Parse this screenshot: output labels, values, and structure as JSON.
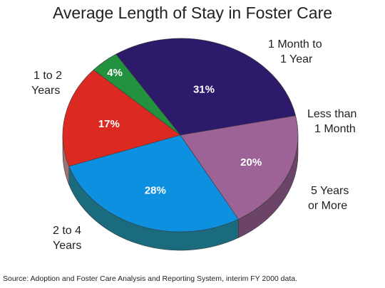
{
  "chart_data": {
    "type": "pie",
    "title": "Average Length of Stay in Foster Care",
    "source": "Source: Adoption and Foster Care Analysis and Reporting System, interim FY 2000 data.",
    "slices": [
      {
        "label_lines": [
          "1 Month to",
          "1 Year"
        ],
        "value": 31,
        "value_label": "31%",
        "color": "#2e1a6b",
        "side_color": "#1a0e45"
      },
      {
        "label_lines": [
          "Less than",
          "1 Month"
        ],
        "value": 4,
        "value_label": "4%",
        "color": "#23923f",
        "side_color": "#165e28"
      },
      {
        "label_lines": [
          "5 Years",
          "or More"
        ],
        "value": 17,
        "value_label": "17%",
        "color": "#dc2a22",
        "side_color": "#9c7273"
      },
      {
        "label_lines": [
          "2 to 4",
          "Years"
        ],
        "value": 28,
        "value_label": "28%",
        "color": "#0d90e0",
        "side_color": "#1a6b7e"
      },
      {
        "label_lines": [
          "1 to 2",
          "Years"
        ],
        "value": 20,
        "value_label": "20%",
        "color": "#9d6396",
        "side_color": "#6b4467"
      }
    ]
  }
}
